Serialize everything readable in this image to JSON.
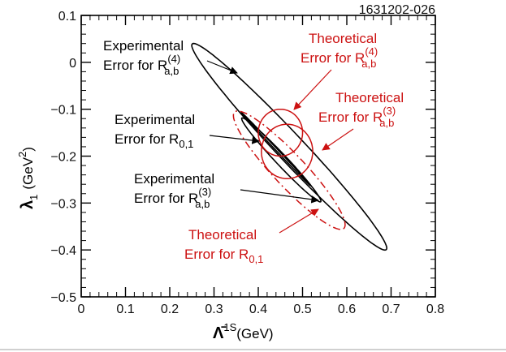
{
  "chart_data": {
    "type": "scatter",
    "figure_id": "1631202-026",
    "xlabel": {
      "main": "Λ̄",
      "sup": "1S",
      "unit": "(GeV)"
    },
    "ylabel": {
      "main": "λ",
      "sub": "1",
      "unit": "(GeV",
      "unit_sup": "2",
      "unit_close": ")"
    },
    "xlim": [
      0,
      0.8
    ],
    "ylim": [
      -0.5,
      0.1
    ],
    "xticks": [
      "0",
      "0.1",
      "0.2",
      "0.3",
      "0.4",
      "0.5",
      "0.6",
      "0.7",
      "0.8"
    ],
    "yticks": [
      "0.1",
      "0",
      "−0.1",
      "−0.2",
      "−0.3",
      "−0.4",
      "−0.5"
    ],
    "grid": false,
    "colors": {
      "experimental": "#000000",
      "theoretical": "#cc1111"
    },
    "ellipses": [
      {
        "name": "exp_R4",
        "cx": 0.47,
        "cy": -0.18,
        "semi_major": 0.31,
        "semi_minor": 0.03,
        "angle_deg": -45,
        "color": "#000000",
        "dash": "solid"
      },
      {
        "name": "exp_R3",
        "cx": 0.452,
        "cy": -0.208,
        "semi_major": 0.126,
        "semi_minor": 0.012,
        "angle_deg": -45,
        "color": "#000000",
        "dash": "solid"
      },
      {
        "name": "exp_R01",
        "cx": 0.44,
        "cy": -0.185,
        "semi_major": 0.11,
        "semi_minor": 0.002,
        "angle_deg": -45,
        "color": "#000000",
        "dash": "solid"
      },
      {
        "name": "theo_R4",
        "cx": 0.45,
        "cy": -0.15,
        "semi_major": 0.05,
        "semi_minor": 0.05,
        "angle_deg": 0,
        "color": "#cc1111",
        "dash": "solid"
      },
      {
        "name": "theo_R3",
        "cx": 0.465,
        "cy": -0.19,
        "semi_major": 0.058,
        "semi_minor": 0.058,
        "angle_deg": 0,
        "color": "#cc1111",
        "dash": "solid"
      },
      {
        "name": "theo_R01",
        "cx": 0.47,
        "cy": -0.23,
        "semi_major": 0.175,
        "semi_minor": 0.035,
        "angle_deg": -45,
        "color": "#cc1111",
        "dash": "dashdot"
      }
    ],
    "annotations": [
      {
        "line1": "Experimental",
        "line2": "Error for R",
        "sub": "a,b",
        "sup": "(4)",
        "color": "#000000"
      },
      {
        "line1": "Experimental",
        "line2": "Error for R",
        "sub": "0,1",
        "sup": "",
        "color": "#000000"
      },
      {
        "line1": "Experimental",
        "line2": "Error for R",
        "sub": "a,b",
        "sup": "(3)",
        "color": "#000000"
      },
      {
        "line1": "Theoretical",
        "line2": "Error for R",
        "sub": "a,b",
        "sup": "(4)",
        "color": "#cc1111"
      },
      {
        "line1": "Theoretical",
        "line2": "Error for R",
        "sub": "a,b",
        "sup": "(3)",
        "color": "#cc1111"
      },
      {
        "line1": "Theoretical",
        "line2": "Error for R",
        "sub": "0,1",
        "sup": "",
        "color": "#cc1111"
      }
    ]
  }
}
